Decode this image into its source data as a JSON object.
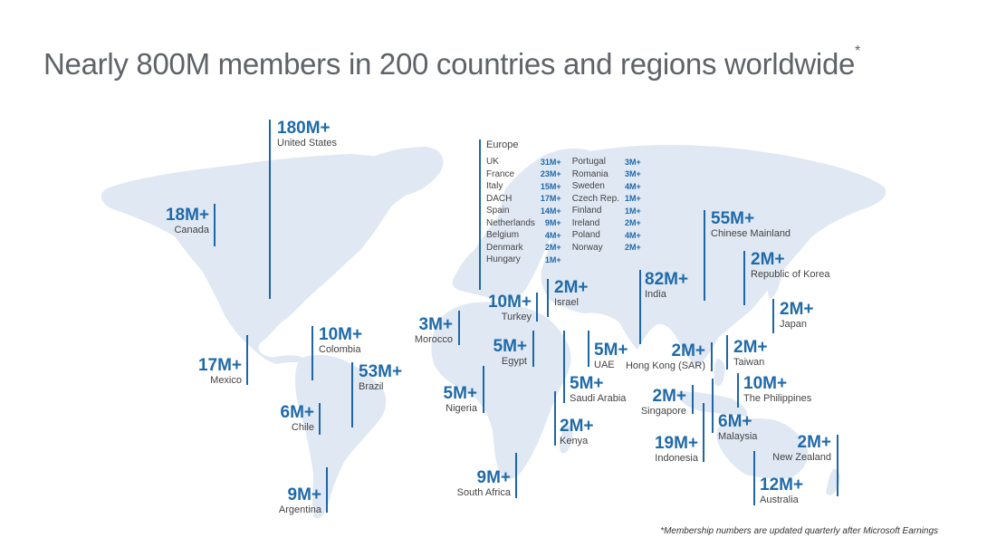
{
  "title": "Nearly 800M members in 200 countries and regions worldwide",
  "title_mark": "*",
  "footnote": "*Membership numbers are updated quarterly after Microsoft Earnings",
  "colors": {
    "accent": "#1f6aaa",
    "land": "#dfe8f3",
    "stem": "#1e66a8"
  },
  "regions": [
    {
      "value": "180M+",
      "name": "United States"
    },
    {
      "value": "18M+",
      "name": "Canada"
    },
    {
      "value": "17M+",
      "name": "Mexico"
    },
    {
      "value": "10M+",
      "name": "Colombia"
    },
    {
      "value": "53M+",
      "name": "Brazil"
    },
    {
      "value": "6M+",
      "name": "Chile"
    },
    {
      "value": "9M+",
      "name": "Argentina"
    },
    {
      "value": "3M+",
      "name": "Morocco"
    },
    {
      "value": "10M+",
      "name": "Turkey"
    },
    {
      "value": "2M+",
      "name": "Israel"
    },
    {
      "value": "5M+",
      "name": "Egypt"
    },
    {
      "value": "5M+",
      "name": "Nigeria"
    },
    {
      "value": "5M+",
      "name": "UAE"
    },
    {
      "value": "5M+",
      "name": "Saudi Arabia"
    },
    {
      "value": "2M+",
      "name": "Kenya"
    },
    {
      "value": "9M+",
      "name": "South Africa"
    },
    {
      "value": "82M+",
      "name": "India"
    },
    {
      "value": "55M+",
      "name": "Chinese Mainland"
    },
    {
      "value": "2M+",
      "name": "Republic of Korea"
    },
    {
      "value": "2M+",
      "name": "Japan"
    },
    {
      "value": "2M+",
      "name": "Hong Kong (SAR)"
    },
    {
      "value": "2M+",
      "name": "Taiwan"
    },
    {
      "value": "10M+",
      "name": "The Philippines"
    },
    {
      "value": "2M+",
      "name": "Singapore"
    },
    {
      "value": "6M+",
      "name": "Malaysia"
    },
    {
      "value": "19M+",
      "name": "Indonesia"
    },
    {
      "value": "2M+",
      "name": "New Zealand"
    },
    {
      "value": "12M+",
      "name": "Australia"
    }
  ],
  "europe": {
    "heading": "Europe",
    "left": [
      {
        "name": "UK",
        "value": "31M+"
      },
      {
        "name": "France",
        "value": "23M+"
      },
      {
        "name": "Italy",
        "value": "15M+"
      },
      {
        "name": "DACH",
        "value": "17M+"
      },
      {
        "name": "Spain",
        "value": "14M+"
      },
      {
        "name": "Netherlands",
        "value": "9M+"
      },
      {
        "name": "Belgium",
        "value": "4M+"
      },
      {
        "name": "Denmark",
        "value": "2M+"
      },
      {
        "name": "Hungary",
        "value": "1M+"
      }
    ],
    "right": [
      {
        "name": "Portugal",
        "value": "3M+"
      },
      {
        "name": "Romania",
        "value": "3M+"
      },
      {
        "name": "Sweden",
        "value": "4M+"
      },
      {
        "name": "Czech Rep.",
        "value": "1M+"
      },
      {
        "name": "Finland",
        "value": "1M+"
      },
      {
        "name": "Ireland",
        "value": "2M+"
      },
      {
        "name": "Poland",
        "value": "4M+"
      },
      {
        "name": "Norway",
        "value": "2M+"
      },
      {
        "name": "",
        "value": ""
      }
    ]
  }
}
